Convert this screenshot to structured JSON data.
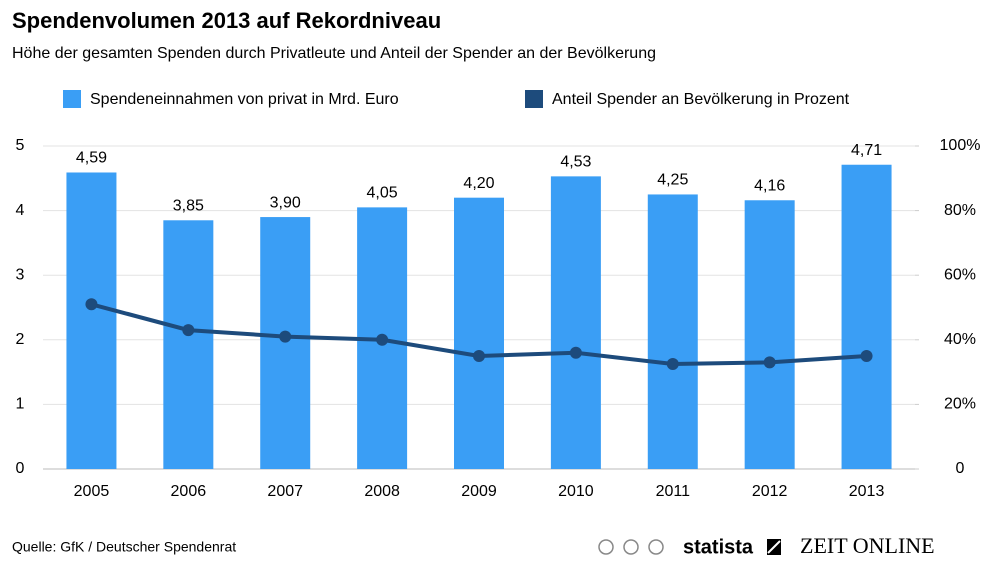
{
  "chart_data": {
    "type": "bar",
    "title": "Spendenvolumen 2013 auf Rekordniveau",
    "subtitle": "Höhe der gesamten Spenden durch Privatleute und Anteil der Spender an der Bevölkerung",
    "categories": [
      "2005",
      "2006",
      "2007",
      "2008",
      "2009",
      "2010",
      "2011",
      "2012",
      "2013"
    ],
    "series": [
      {
        "name": "Spendeneinnahmen von privat in Mrd. Euro",
        "type": "bar",
        "color": "#3a9ef5",
        "values": [
          4.59,
          3.85,
          3.9,
          4.05,
          4.2,
          4.53,
          4.25,
          4.16,
          4.71
        ],
        "value_labels": [
          "4,59",
          "3,85",
          "3,90",
          "4,05",
          "4,20",
          "4,53",
          "4,25",
          "4,16",
          "4,71"
        ]
      },
      {
        "name": "Anteil Spender an Bevölkerung in Prozent",
        "type": "line",
        "axis": "y2",
        "color": "#1d4b7c",
        "values": [
          51,
          43,
          41,
          40,
          35,
          36,
          32.5,
          33,
          35
        ]
      }
    ],
    "ylim": [
      0,
      5
    ],
    "yticks": [
      0,
      1,
      2,
      3,
      4,
      5
    ],
    "y2lim": [
      0,
      100
    ],
    "y2ticks": [
      0,
      {
        "value": 20,
        "label": "20%"
      },
      {
        "value": 40,
        "label": "40%"
      },
      {
        "value": 60,
        "label": "60%"
      },
      {
        "value": 80,
        "label": "80%"
      },
      {
        "value": 100,
        "label": "100%"
      }
    ],
    "grid": true
  },
  "footer": {
    "source": "Quelle: GfK / Deutscher Spendenrat",
    "brand": "statista",
    "partner": "ZEIT ONLINE"
  }
}
